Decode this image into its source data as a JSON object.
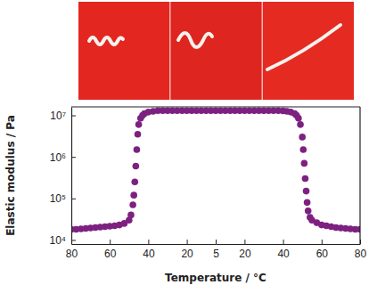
{
  "chart_data": [
    {
      "type": "scatter",
      "xlabel": "Temperature / °C",
      "ylabel": "Elastic modulus / Pa",
      "log": "y",
      "tick_labels": true,
      "xlim": [
        80,
        5
      ],
      "xticks": [
        80,
        60,
        40,
        20
      ],
      "ylim": [
        8000,
        16000000
      ],
      "yticks": [
        {
          "value": 10000,
          "label": "10⁴"
        },
        {
          "value": 100000,
          "label": "10⁵"
        },
        {
          "value": 1000000,
          "label": "10⁶"
        },
        {
          "value": 10000000,
          "label": "10⁷"
        }
      ],
      "x": [
        80,
        77.5,
        75,
        72.5,
        70,
        67.5,
        65,
        62.5,
        60,
        57.5,
        55,
        52.5,
        50,
        49,
        48,
        47.5,
        47,
        46.5,
        46,
        45.5,
        45,
        44,
        43,
        42,
        40,
        37.5,
        35,
        32.5,
        30,
        27.5,
        25,
        22.5,
        20,
        17.5,
        15,
        12.5,
        10,
        7.5,
        5
      ],
      "series": [
        {
          "color": "#7d2181",
          "marker": "circle",
          "values": [
            18000,
            18000,
            18500,
            19000,
            19500,
            20000,
            20500,
            21000,
            21500,
            22000,
            23000,
            25000,
            30000,
            40000,
            70000,
            120000,
            250000,
            600000,
            1500000,
            3500000,
            6000000,
            8500000,
            10000000,
            11000000,
            12000000,
            12500000,
            13000000,
            13000000,
            13000000,
            13000000,
            13000000,
            13000000,
            13000000,
            13000000,
            13000000,
            13000000,
            13000000,
            13000000,
            13000000
          ]
        }
      ]
    },
    {
      "type": "scatter",
      "log": "y",
      "tick_labels": "x",
      "xlim": [
        5,
        80
      ],
      "xticks": [
        5,
        20,
        40,
        60,
        80
      ],
      "ylim": [
        8000,
        16000000
      ],
      "x": [
        5,
        7.5,
        10,
        12.5,
        15,
        17.5,
        20,
        22.5,
        25,
        27.5,
        30,
        32.5,
        35,
        37.5,
        40,
        42,
        44,
        46,
        47,
        48,
        49,
        50,
        50.5,
        51,
        51.5,
        52,
        52.5,
        53,
        54,
        55,
        57.5,
        60,
        62.5,
        65,
        67.5,
        70,
        72.5,
        75,
        77.5,
        80
      ],
      "series": [
        {
          "color": "#7d2181",
          "marker": "circle",
          "values": [
            13000000,
            13000000,
            13000000,
            13000000,
            13000000,
            13000000,
            13000000,
            13000000,
            13000000,
            13000000,
            13000000,
            13000000,
            13000000,
            13000000,
            12800000,
            12500000,
            12000000,
            11000000,
            10000000,
            8500000,
            6000000,
            3000000,
            1500000,
            700000,
            300000,
            150000,
            80000,
            50000,
            35000,
            30000,
            26000,
            23000,
            22000,
            21000,
            20000,
            19500,
            19000,
            18500,
            18000,
            18000
          ]
        }
      ]
    }
  ]
}
